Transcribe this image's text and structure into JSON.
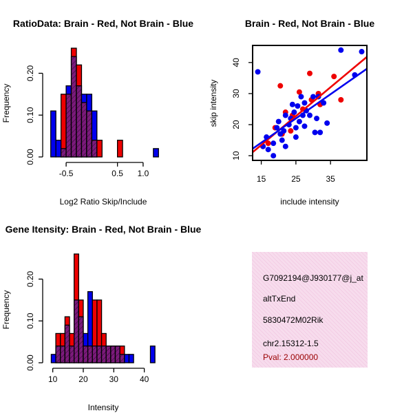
{
  "colors": {
    "red": "#ee0000",
    "blue": "#0000ee",
    "purple": "#7b1a7b",
    "info_bg": "#f7dced",
    "pval": "#990000"
  },
  "chart_data": [
    {
      "id": "ratio",
      "type": "histogram",
      "title": "RatioData: Brain - Red, Not Brain - Blue",
      "xlabel": "Log2 Ratio Skip/Include",
      "ylabel": "Frequency",
      "xlim": [
        -0.85,
        1.35
      ],
      "ylim": [
        0,
        0.26
      ],
      "xticks": [
        -0.5,
        0.5,
        1.0
      ],
      "xtick_labels": [
        "-0.5",
        "0.5",
        "1.0"
      ],
      "yticks": [
        0.0,
        0.1,
        0.2
      ],
      "ytick_labels": [
        "0.00",
        "0.10",
        "0.20"
      ],
      "bins": [
        {
          "x0": -0.8,
          "x1": -0.7,
          "red": 0.0,
          "blue": 0.11
        },
        {
          "x0": -0.7,
          "x1": -0.6,
          "red": 0.0,
          "blue": 0.04
        },
        {
          "x0": -0.6,
          "x1": -0.5,
          "red": 0.15,
          "blue": 0.02
        },
        {
          "x0": -0.5,
          "x1": -0.4,
          "red": 0.15,
          "blue": 0.17
        },
        {
          "x0": -0.4,
          "x1": -0.3,
          "red": 0.26,
          "blue": 0.24
        },
        {
          "x0": -0.3,
          "x1": -0.2,
          "red": 0.22,
          "blue": 0.17
        },
        {
          "x0": -0.2,
          "x1": -0.1,
          "red": 0.13,
          "blue": 0.15
        },
        {
          "x0": -0.1,
          "x1": 0.0,
          "red": 0.11,
          "blue": 0.15
        },
        {
          "x0": 0.0,
          "x1": 0.1,
          "red": 0.04,
          "blue": 0.11
        },
        {
          "x0": 0.1,
          "x1": 0.2,
          "red": 0.04,
          "blue": 0.0
        },
        {
          "x0": 0.5,
          "x1": 0.6,
          "red": 0.04,
          "blue": 0.0
        },
        {
          "x0": 1.2,
          "x1": 1.3,
          "red": 0.0,
          "blue": 0.02
        }
      ]
    },
    {
      "id": "scatter",
      "type": "scatter",
      "title": "Brain - Red, Not Brain - Blue",
      "xlabel": "include intensity",
      "ylabel": "skip intensity",
      "xlim": [
        12.5,
        45.5
      ],
      "ylim": [
        8.5,
        45.5
      ],
      "xticks": [
        15,
        25,
        35
      ],
      "xtick_labels": [
        "15",
        "25",
        "35"
      ],
      "yticks": [
        10,
        20,
        30,
        40
      ],
      "ytick_labels": [
        "10",
        "20",
        "30",
        "40"
      ],
      "series": [
        {
          "name": "Brain",
          "color": "red",
          "points": [
            [
              15.5,
              13
            ],
            [
              17,
              14
            ],
            [
              19,
              19
            ],
            [
              20.5,
              32.5
            ],
            [
              21,
              17
            ],
            [
              22,
              24
            ],
            [
              23.5,
              18
            ],
            [
              24,
              23
            ],
            [
              26,
              30.5
            ],
            [
              27,
              25
            ],
            [
              29,
              36.5
            ],
            [
              29.5,
              28
            ],
            [
              31.5,
              30
            ],
            [
              32,
              26.5
            ],
            [
              36,
              35.5
            ],
            [
              38,
              28
            ]
          ],
          "fit": {
            "intercept": -0.5,
            "slope": 0.93
          }
        },
        {
          "name": "Not Brain",
          "color": "blue",
          "points": [
            [
              14,
              37
            ],
            [
              15.5,
              13
            ],
            [
              16.5,
              16
            ],
            [
              17,
              12
            ],
            [
              18.5,
              10
            ],
            [
              18.5,
              14
            ],
            [
              19.5,
              19
            ],
            [
              20,
              21
            ],
            [
              20.5,
              17
            ],
            [
              21,
              15
            ],
            [
              21.5,
              18
            ],
            [
              22,
              13
            ],
            [
              22,
              23
            ],
            [
              23,
              20
            ],
            [
              23.5,
              22
            ],
            [
              24,
              26.5
            ],
            [
              24.5,
              24
            ],
            [
              25,
              19
            ],
            [
              25,
              16
            ],
            [
              25.5,
              26
            ],
            [
              26,
              21
            ],
            [
              26.5,
              29
            ],
            [
              27,
              23
            ],
            [
              27.5,
              19.5
            ],
            [
              27.5,
              27
            ],
            [
              28,
              24.5
            ],
            [
              29,
              23
            ],
            [
              30,
              29
            ],
            [
              30.5,
              17.5
            ],
            [
              31,
              22
            ],
            [
              31.5,
              29
            ],
            [
              32,
              17.5
            ],
            [
              33,
              27
            ],
            [
              34,
              20.5
            ],
            [
              38,
              44
            ],
            [
              42,
              36
            ],
            [
              44,
              43.5
            ]
          ],
          "fit": {
            "intercept": 2.5,
            "slope": 0.78
          }
        }
      ]
    },
    {
      "id": "intensity",
      "type": "histogram",
      "title": "Gene Itensity: Brain - Red, Not Brain - Blue",
      "xlabel": "Intensity",
      "ylabel": "Frequency",
      "xlim": [
        8.5,
        45.5
      ],
      "ylim": [
        0,
        0.26
      ],
      "xticks": [
        10,
        20,
        30,
        40
      ],
      "xtick_labels": [
        "10",
        "20",
        "30",
        "40"
      ],
      "yticks": [
        0.0,
        0.1,
        0.2
      ],
      "ytick_labels": [
        "0.00",
        "0.10",
        "0.20"
      ],
      "bins": [
        {
          "x0": 9.5,
          "x1": 11,
          "red": 0.0,
          "blue": 0.02
        },
        {
          "x0": 11,
          "x1": 12.5,
          "red": 0.07,
          "blue": 0.04
        },
        {
          "x0": 12.5,
          "x1": 14,
          "red": 0.07,
          "blue": 0.04
        },
        {
          "x0": 14,
          "x1": 15.5,
          "red": 0.11,
          "blue": 0.09
        },
        {
          "x0": 15.5,
          "x1": 17,
          "red": 0.07,
          "blue": 0.04
        },
        {
          "x0": 17,
          "x1": 18.5,
          "red": 0.26,
          "blue": 0.15
        },
        {
          "x0": 18.5,
          "x1": 20,
          "red": 0.15,
          "blue": 0.11
        },
        {
          "x0": 20,
          "x1": 21.5,
          "red": 0.04,
          "blue": 0.07
        },
        {
          "x0": 21.5,
          "x1": 23,
          "red": 0.04,
          "blue": 0.17
        },
        {
          "x0": 23,
          "x1": 24.5,
          "red": 0.15,
          "blue": 0.04
        },
        {
          "x0": 24.5,
          "x1": 26,
          "red": 0.15,
          "blue": 0.04
        },
        {
          "x0": 26,
          "x1": 27.5,
          "red": 0.07,
          "blue": 0.04
        },
        {
          "x0": 27.5,
          "x1": 29,
          "red": 0.04,
          "blue": 0.04
        },
        {
          "x0": 29,
          "x1": 30.5,
          "red": 0.04,
          "blue": 0.04
        },
        {
          "x0": 30.5,
          "x1": 32,
          "red": 0.04,
          "blue": 0.04
        },
        {
          "x0": 32,
          "x1": 33.5,
          "red": 0.04,
          "blue": 0.02
        },
        {
          "x0": 33.5,
          "x1": 35,
          "red": 0.0,
          "blue": 0.02
        },
        {
          "x0": 35,
          "x1": 36.5,
          "red": 0.0,
          "blue": 0.02
        },
        {
          "x0": 42,
          "x1": 43.5,
          "red": 0.0,
          "blue": 0.04
        }
      ]
    }
  ],
  "info": {
    "lines": [
      "G7092194@J930177@j_at",
      "altTxEnd",
      "5830472M02Rik",
      "chr2.15312-1.5"
    ],
    "pval": "Pval: 2.000000"
  }
}
